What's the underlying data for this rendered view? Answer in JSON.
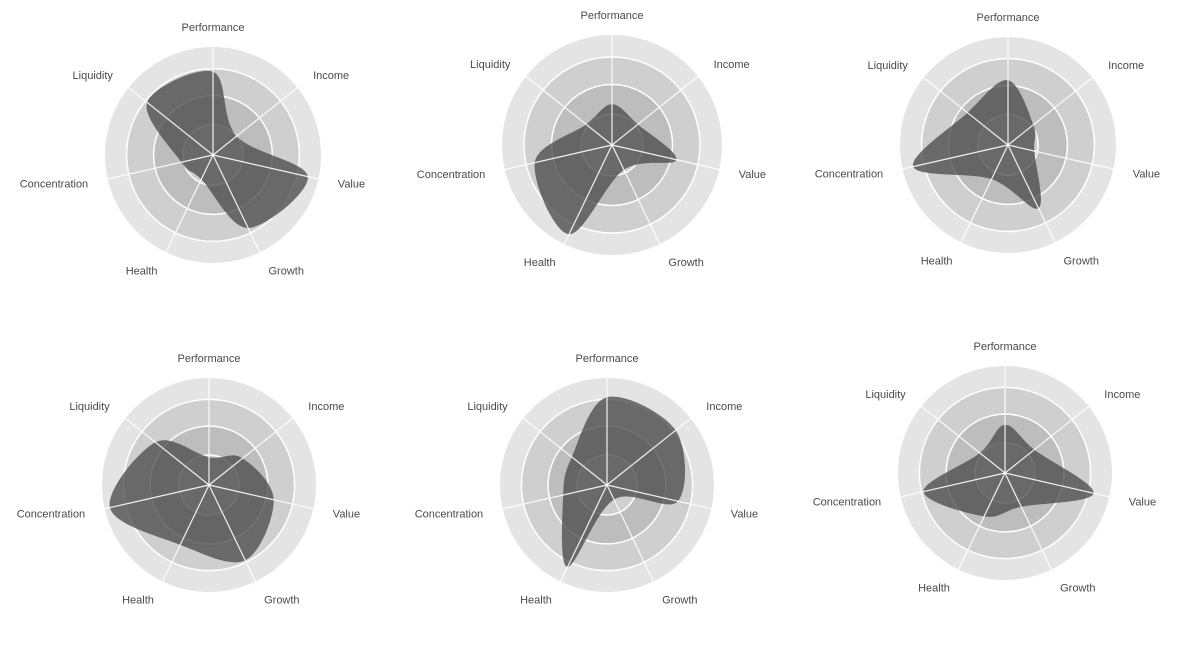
{
  "colors": {
    "ring_outer": "#e4e4e4",
    "ring_mid": "#cfcfcf",
    "ring_inner": "#bdbdbd",
    "grid_line": "#ffffff",
    "shape_fill": "#4c4c4c",
    "label_text": "#4a4a4a"
  },
  "chart_data": [
    {
      "type": "radar",
      "axes": [
        "Performance",
        "Income",
        "Value",
        "Growth",
        "Health",
        "Concentration",
        "Liquidity"
      ],
      "max": 100,
      "rings": 4,
      "values": [
        77,
        28,
        90,
        75,
        25,
        30,
        78
      ]
    },
    {
      "type": "radar",
      "axes": [
        "Performance",
        "Income",
        "Value",
        "Growth",
        "Health",
        "Concentration",
        "Liquidity"
      ],
      "max": 100,
      "rings": 4,
      "values": [
        37,
        30,
        60,
        25,
        90,
        72,
        30
      ]
    },
    {
      "type": "radar",
      "axes": [
        "Performance",
        "Income",
        "Value",
        "Growth",
        "Health",
        "Concentration",
        "Liquidity"
      ],
      "max": 100,
      "rings": 4,
      "values": [
        60,
        30,
        25,
        65,
        35,
        90,
        48
      ]
    },
    {
      "type": "radar",
      "axes": [
        "Performance",
        "Income",
        "Value",
        "Growth",
        "Health",
        "Concentration",
        "Liquidity"
      ],
      "max": 100,
      "rings": 4,
      "values": [
        26,
        40,
        62,
        78,
        62,
        95,
        64
      ]
    },
    {
      "type": "radar",
      "axes": [
        "Performance",
        "Income",
        "Value",
        "Growth",
        "Health",
        "Concentration",
        "Liquidity"
      ],
      "max": 100,
      "rings": 4,
      "values": [
        82,
        82,
        68,
        15,
        85,
        42,
        42
      ]
    },
    {
      "type": "radar",
      "axes": [
        "Performance",
        "Income",
        "Value",
        "Growth",
        "Health",
        "Concentration",
        "Liquidity"
      ],
      "max": 100,
      "rings": 4,
      "values": [
        45,
        35,
        85,
        35,
        45,
        78,
        30
      ]
    }
  ]
}
